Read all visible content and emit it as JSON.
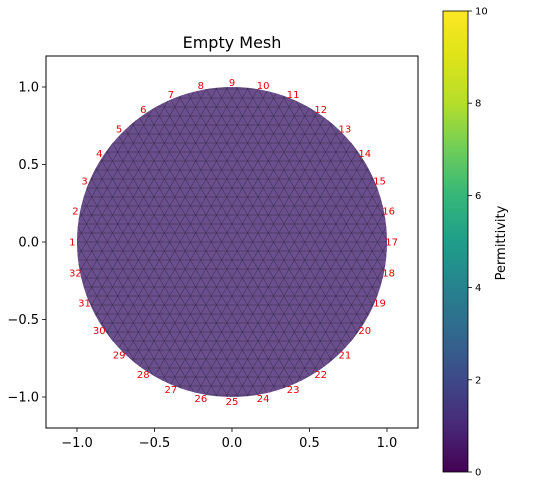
{
  "chart_data": {
    "type": "heatmap",
    "title": "Empty Mesh",
    "xlabel": "",
    "ylabel": "",
    "xlim": [
      -1.2,
      1.2
    ],
    "ylim": [
      -1.2,
      1.2
    ],
    "x_ticks": [
      -1.0,
      -0.5,
      0.0,
      0.5,
      1.0
    ],
    "x_tick_labels": [
      "−1.0",
      "−0.5",
      "0.0",
      "0.5",
      "1.0"
    ],
    "y_ticks": [
      1.0,
      0.5,
      0.0,
      -0.5,
      -1.0
    ],
    "y_tick_labels": [
      "1.0",
      "0.5",
      "0.0",
      "−0.5",
      "−1.0"
    ],
    "grid": false,
    "mesh": {
      "shape": "circle",
      "center": [
        0,
        0
      ],
      "radius": 1.0,
      "uniform_value": 1,
      "fill_color": "#6a4f8c",
      "edge_color": "#2a1f3d"
    },
    "electrodes": {
      "count": 32,
      "label_color": "#e8000b",
      "labels": [
        "1",
        "2",
        "3",
        "4",
        "5",
        "6",
        "7",
        "8",
        "9",
        "10",
        "11",
        "12",
        "13",
        "14",
        "15",
        "16",
        "17",
        "18",
        "19",
        "20",
        "21",
        "22",
        "23",
        "24",
        "25",
        "26",
        "27",
        "28",
        "29",
        "30",
        "31",
        "32"
      ],
      "angles_deg": [
        180.0,
        168.75,
        157.5,
        146.25,
        135.0,
        123.75,
        112.5,
        101.25,
        90.0,
        78.75,
        67.5,
        56.25,
        45.0,
        33.75,
        22.5,
        11.25,
        0.0,
        -11.25,
        -22.5,
        -33.75,
        -45.0,
        -56.25,
        -67.5,
        -78.75,
        -90.0,
        -101.25,
        -112.5,
        -123.75,
        -135.0,
        -146.25,
        -157.5,
        -168.75
      ]
    },
    "colorbar": {
      "label": "Permittivity",
      "range": [
        0,
        10
      ],
      "ticks": [
        0,
        2,
        4,
        6,
        8,
        10
      ],
      "tick_labels": [
        "0",
        "2",
        "4",
        "6",
        "8",
        "10"
      ],
      "colormap": "viridis"
    }
  }
}
